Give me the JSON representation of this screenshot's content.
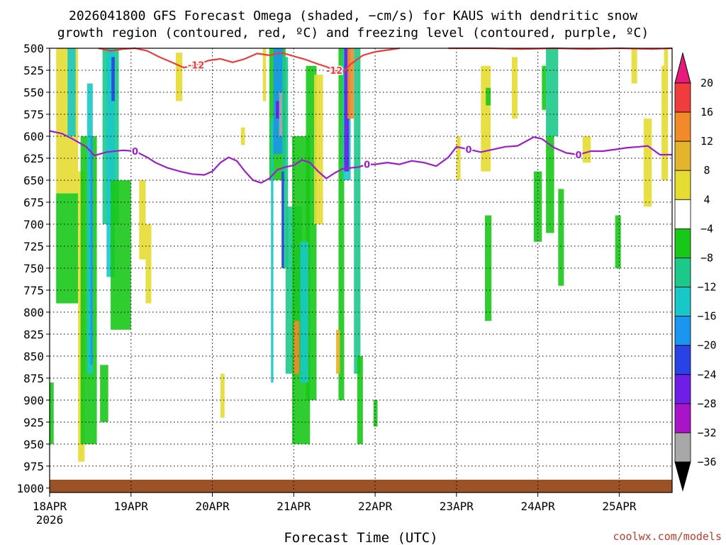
{
  "chart_data": {
    "type": "heatmap",
    "title_lines": [
      "2026041800 GFS Forecast Omega (shaded, −cm/s) for KAUS with dendritic snow",
      "growth region (contoured, red, ºC) and freezing level (contoured, purple, ºC)"
    ],
    "xlabel": "Forecast Time (UTC)",
    "x_ticks": [
      "18APR",
      "19APR",
      "20APR",
      "21APR",
      "22APR",
      "23APR",
      "24APR",
      "25APR"
    ],
    "x_tick_year": "2026",
    "x_range": [
      0,
      7.65
    ],
    "y_ticks": [
      500,
      525,
      550,
      575,
      600,
      625,
      650,
      675,
      700,
      725,
      750,
      775,
      800,
      825,
      850,
      875,
      900,
      925,
      950,
      975,
      1000
    ],
    "y_range": [
      500,
      1005
    ],
    "colorbar": {
      "labels": [
        "20",
        "16",
        "12",
        "8",
        "4",
        "−4",
        "−8",
        "−12",
        "−16",
        "−20",
        "−24",
        "−28",
        "−32",
        "−36"
      ],
      "colors": [
        "#f03c3c",
        "#f28a2a",
        "#e6b42c",
        "#e6dc32",
        "#ffffff",
        "#18c818",
        "#1cc98a",
        "#18c8c8",
        "#1a96f0",
        "#2842e6",
        "#6e1ee6",
        "#aa14c8",
        "#a8a8a8"
      ],
      "top_arrow_color": "#e6197d",
      "bottom_arrow_color": "#000000"
    },
    "contours": {
      "freezing_level": {
        "color": "#9b1ecc",
        "label": "0",
        "points": [
          [
            0,
            594
          ],
          [
            0.15,
            597
          ],
          [
            0.3,
            604
          ],
          [
            0.45,
            612
          ],
          [
            0.55,
            622
          ],
          [
            0.7,
            618
          ],
          [
            0.9,
            616
          ],
          [
            1.05,
            617
          ],
          [
            1.2,
            624
          ],
          [
            1.3,
            630
          ],
          [
            1.45,
            636
          ],
          [
            1.6,
            640
          ],
          [
            1.75,
            643
          ],
          [
            1.9,
            644
          ],
          [
            2.0,
            640
          ],
          [
            2.1,
            630
          ],
          [
            2.2,
            624
          ],
          [
            2.3,
            628
          ],
          [
            2.4,
            640
          ],
          [
            2.5,
            650
          ],
          [
            2.6,
            653
          ],
          [
            2.7,
            648
          ],
          [
            2.8,
            638
          ],
          [
            2.9,
            635
          ],
          [
            3.0,
            633
          ],
          [
            3.1,
            627
          ],
          [
            3.2,
            630
          ],
          [
            3.3,
            640
          ],
          [
            3.4,
            648
          ],
          [
            3.5,
            642
          ],
          [
            3.6,
            637
          ],
          [
            3.7,
            636
          ],
          [
            3.8,
            635
          ],
          [
            3.9,
            632
          ],
          [
            4.0,
            632
          ],
          [
            4.15,
            630
          ],
          [
            4.3,
            632
          ],
          [
            4.45,
            628
          ],
          [
            4.6,
            630
          ],
          [
            4.75,
            634
          ],
          [
            4.9,
            624
          ],
          [
            5.0,
            612
          ],
          [
            5.15,
            615
          ],
          [
            5.3,
            618
          ],
          [
            5.45,
            615
          ],
          [
            5.6,
            612
          ],
          [
            5.75,
            611
          ],
          [
            5.85,
            606
          ],
          [
            5.95,
            601
          ],
          [
            6.05,
            603
          ],
          [
            6.2,
            613
          ],
          [
            6.35,
            619
          ],
          [
            6.5,
            621
          ],
          [
            6.65,
            617
          ],
          [
            6.8,
            617
          ],
          [
            6.95,
            615
          ],
          [
            7.1,
            613
          ],
          [
            7.25,
            612
          ],
          [
            7.35,
            611
          ],
          [
            7.5,
            621
          ],
          [
            7.65,
            621
          ]
        ],
        "label_x": [
          1.0,
          3.9,
          5.2,
          6.5
        ]
      },
      "dendritic_minus12": {
        "color": "#f03c3c",
        "label": "-12",
        "points": [
          [
            0.6,
            500
          ],
          [
            0.75,
            503
          ],
          [
            0.9,
            501
          ],
          [
            1.05,
            500
          ],
          [
            1.2,
            503
          ],
          [
            1.35,
            510
          ],
          [
            1.5,
            516
          ],
          [
            1.65,
            522
          ],
          [
            1.8,
            519
          ],
          [
            1.95,
            514
          ],
          [
            2.1,
            512
          ],
          [
            2.25,
            516
          ],
          [
            2.4,
            512
          ],
          [
            2.55,
            506
          ],
          [
            2.7,
            508
          ],
          [
            2.85,
            505
          ],
          [
            3.0,
            509
          ],
          [
            3.15,
            513
          ],
          [
            3.3,
            518
          ],
          [
            3.4,
            521
          ],
          [
            3.5,
            525
          ],
          [
            3.6,
            528
          ],
          [
            3.7,
            518
          ],
          [
            3.85,
            508
          ],
          [
            4.0,
            504
          ],
          [
            4.15,
            502
          ],
          [
            4.3,
            500
          ]
        ],
        "label_x": [
          1.75,
          3.45
        ],
        "top_right": [
          [
            4.9,
            500
          ],
          [
            5.4,
            500
          ],
          [
            5.8,
            501
          ],
          [
            6.2,
            500
          ],
          [
            6.6,
            501
          ],
          [
            7.0,
            500
          ],
          [
            7.4,
            501
          ],
          [
            7.65,
            500
          ]
        ]
      }
    }
  },
  "credit": "coolwx.com/models"
}
